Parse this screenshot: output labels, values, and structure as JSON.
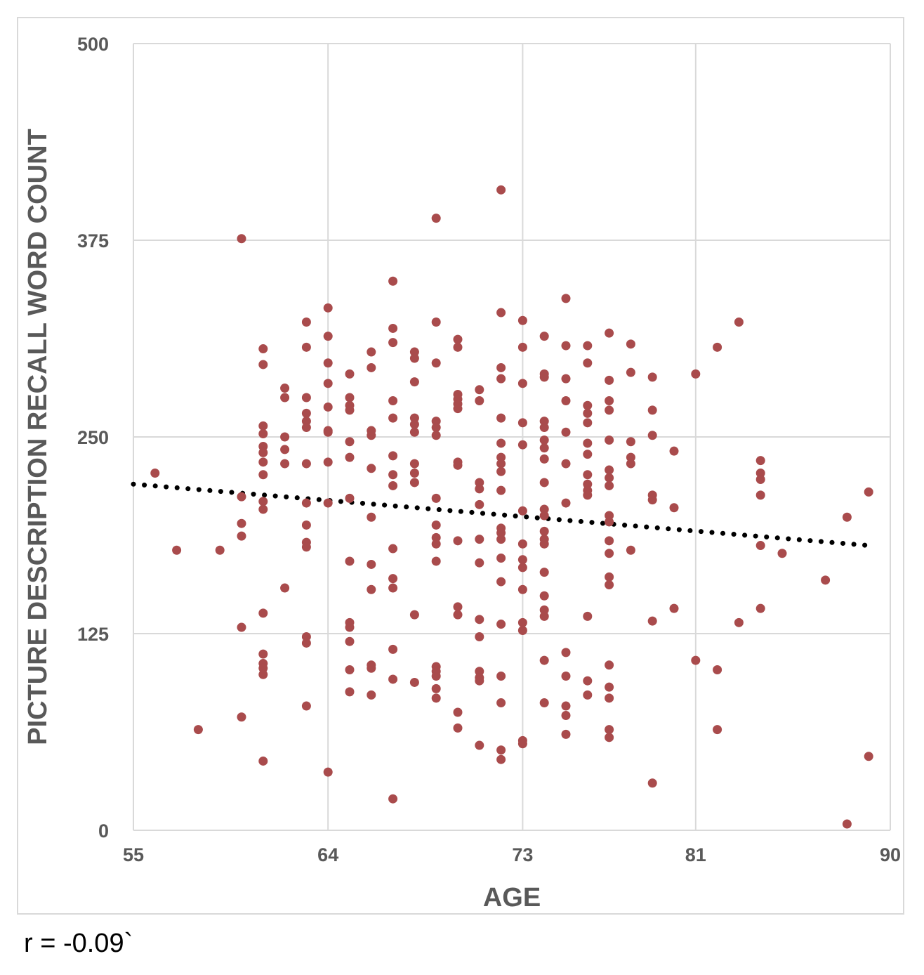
{
  "colors": {
    "marker": "#A94B4C",
    "trendline": "#000000",
    "grid": "#d9d9d9",
    "tick_text": "#595959"
  },
  "annotation": "r = -0.09`",
  "chart_data": {
    "type": "scatter",
    "title": "",
    "xlabel": "AGE",
    "ylabel": "PICTURE DESCRIPTION RECALL WORD COUNT",
    "xlim": [
      55,
      90
    ],
    "ylim": [
      0,
      500
    ],
    "xticks": [
      55,
      64,
      73,
      81,
      90
    ],
    "yticks": [
      0,
      125,
      250,
      375,
      500
    ],
    "grid": true,
    "legend": "none",
    "trendline": {
      "style": "dotted",
      "x": [
        55,
        89
      ],
      "y": [
        220,
        181
      ]
    },
    "points": [
      [
        56,
        227
      ],
      [
        57,
        178
      ],
      [
        58,
        64
      ],
      [
        59,
        178
      ],
      [
        60,
        376
      ],
      [
        60,
        212
      ],
      [
        60,
        195
      ],
      [
        60,
        187
      ],
      [
        60,
        129
      ],
      [
        60,
        72
      ],
      [
        61,
        306
      ],
      [
        61,
        296
      ],
      [
        61,
        257
      ],
      [
        61,
        252
      ],
      [
        61,
        244
      ],
      [
        61,
        240
      ],
      [
        61,
        234
      ],
      [
        61,
        226
      ],
      [
        61,
        209
      ],
      [
        61,
        204
      ],
      [
        61,
        138
      ],
      [
        61,
        112
      ],
      [
        61,
        106
      ],
      [
        61,
        103
      ],
      [
        61,
        99
      ],
      [
        61,
        44
      ],
      [
        62,
        281
      ],
      [
        62,
        275
      ],
      [
        62,
        250
      ],
      [
        62,
        242
      ],
      [
        62,
        233
      ],
      [
        62,
        154
      ],
      [
        63,
        323
      ],
      [
        63,
        307
      ],
      [
        63,
        275
      ],
      [
        63,
        265
      ],
      [
        63,
        260
      ],
      [
        63,
        256
      ],
      [
        63,
        233
      ],
      [
        63,
        208
      ],
      [
        63,
        194
      ],
      [
        63,
        183
      ],
      [
        63,
        180
      ],
      [
        63,
        123
      ],
      [
        63,
        119
      ],
      [
        63,
        79
      ],
      [
        64,
        332
      ],
      [
        64,
        314
      ],
      [
        64,
        297
      ],
      [
        64,
        284
      ],
      [
        64,
        269
      ],
      [
        64,
        254
      ],
      [
        64,
        253
      ],
      [
        64,
        234
      ],
      [
        64,
        208
      ],
      [
        64,
        37
      ],
      [
        65,
        290
      ],
      [
        65,
        275
      ],
      [
        65,
        270
      ],
      [
        65,
        267
      ],
      [
        65,
        247
      ],
      [
        65,
        237
      ],
      [
        65,
        211
      ],
      [
        65,
        171
      ],
      [
        65,
        132
      ],
      [
        65,
        129
      ],
      [
        65,
        120
      ],
      [
        65,
        102
      ],
      [
        65,
        88
      ],
      [
        66,
        304
      ],
      [
        66,
        294
      ],
      [
        66,
        254
      ],
      [
        66,
        251
      ],
      [
        66,
        230
      ],
      [
        66,
        199
      ],
      [
        66,
        169
      ],
      [
        66,
        153
      ],
      [
        66,
        105
      ],
      [
        66,
        103
      ],
      [
        66,
        86
      ],
      [
        67,
        349
      ],
      [
        67,
        319
      ],
      [
        67,
        310
      ],
      [
        67,
        273
      ],
      [
        67,
        262
      ],
      [
        67,
        238
      ],
      [
        67,
        226
      ],
      [
        67,
        219
      ],
      [
        67,
        179
      ],
      [
        67,
        160
      ],
      [
        67,
        154
      ],
      [
        67,
        115
      ],
      [
        67,
        96
      ],
      [
        67,
        20
      ],
      [
        68,
        304
      ],
      [
        68,
        300
      ],
      [
        68,
        285
      ],
      [
        68,
        262
      ],
      [
        68,
        258
      ],
      [
        68,
        253
      ],
      [
        68,
        233
      ],
      [
        68,
        227
      ],
      [
        68,
        221
      ],
      [
        68,
        137
      ],
      [
        68,
        94
      ],
      [
        69,
        389
      ],
      [
        69,
        323
      ],
      [
        69,
        297
      ],
      [
        69,
        260
      ],
      [
        69,
        256
      ],
      [
        69,
        251
      ],
      [
        69,
        211
      ],
      [
        69,
        194
      ],
      [
        69,
        186
      ],
      [
        69,
        182
      ],
      [
        69,
        171
      ],
      [
        69,
        104
      ],
      [
        69,
        101
      ],
      [
        69,
        98
      ],
      [
        69,
        90
      ],
      [
        69,
        84
      ],
      [
        70,
        312
      ],
      [
        70,
        307
      ],
      [
        70,
        277
      ],
      [
        70,
        274
      ],
      [
        70,
        271
      ],
      [
        70,
        268
      ],
      [
        70,
        234
      ],
      [
        70,
        232
      ],
      [
        70,
        184
      ],
      [
        70,
        142
      ],
      [
        70,
        137
      ],
      [
        70,
        75
      ],
      [
        70,
        65
      ],
      [
        71,
        280
      ],
      [
        71,
        273
      ],
      [
        71,
        221
      ],
      [
        71,
        217
      ],
      [
        71,
        207
      ],
      [
        71,
        185
      ],
      [
        71,
        170
      ],
      [
        71,
        134
      ],
      [
        71,
        123
      ],
      [
        71,
        101
      ],
      [
        71,
        97
      ],
      [
        71,
        95
      ],
      [
        71,
        54
      ],
      [
        72,
        407
      ],
      [
        72,
        329
      ],
      [
        72,
        294
      ],
      [
        72,
        287
      ],
      [
        72,
        262
      ],
      [
        72,
        246
      ],
      [
        72,
        237
      ],
      [
        72,
        233
      ],
      [
        72,
        228
      ],
      [
        72,
        216
      ],
      [
        72,
        192
      ],
      [
        72,
        189
      ],
      [
        72,
        185
      ],
      [
        72,
        173
      ],
      [
        72,
        158
      ],
      [
        72,
        131
      ],
      [
        72,
        98
      ],
      [
        72,
        81
      ],
      [
        72,
        51
      ],
      [
        72,
        45
      ],
      [
        73,
        324
      ],
      [
        73,
        307
      ],
      [
        73,
        284
      ],
      [
        73,
        259
      ],
      [
        73,
        245
      ],
      [
        73,
        203
      ],
      [
        73,
        182
      ],
      [
        73,
        172
      ],
      [
        73,
        167
      ],
      [
        73,
        153
      ],
      [
        73,
        132
      ],
      [
        73,
        127
      ],
      [
        73,
        57
      ],
      [
        73,
        55
      ],
      [
        74,
        314
      ],
      [
        74,
        290
      ],
      [
        74,
        288
      ],
      [
        74,
        260
      ],
      [
        74,
        256
      ],
      [
        74,
        248
      ],
      [
        74,
        243
      ],
      [
        74,
        236
      ],
      [
        74,
        221
      ],
      [
        74,
        204
      ],
      [
        74,
        200
      ],
      [
        74,
        190
      ],
      [
        74,
        185
      ],
      [
        74,
        182
      ],
      [
        74,
        164
      ],
      [
        74,
        149
      ],
      [
        74,
        140
      ],
      [
        74,
        136
      ],
      [
        74,
        108
      ],
      [
        74,
        81
      ],
      [
        75,
        338
      ],
      [
        75,
        308
      ],
      [
        75,
        287
      ],
      [
        75,
        273
      ],
      [
        75,
        253
      ],
      [
        75,
        233
      ],
      [
        75,
        208
      ],
      [
        75,
        113
      ],
      [
        75,
        98
      ],
      [
        75,
        79
      ],
      [
        75,
        73
      ],
      [
        75,
        61
      ],
      [
        76,
        308
      ],
      [
        76,
        297
      ],
      [
        76,
        270
      ],
      [
        76,
        265
      ],
      [
        76,
        259
      ],
      [
        76,
        246
      ],
      [
        76,
        239
      ],
      [
        76,
        226
      ],
      [
        76,
        220
      ],
      [
        76,
        216
      ],
      [
        76,
        213
      ],
      [
        76,
        136
      ],
      [
        76,
        95
      ],
      [
        76,
        86
      ],
      [
        77,
        316
      ],
      [
        77,
        286
      ],
      [
        77,
        273
      ],
      [
        77,
        267
      ],
      [
        77,
        248
      ],
      [
        77,
        229
      ],
      [
        77,
        224
      ],
      [
        77,
        219
      ],
      [
        77,
        200
      ],
      [
        77,
        196
      ],
      [
        77,
        184
      ],
      [
        77,
        176
      ],
      [
        77,
        161
      ],
      [
        77,
        156
      ],
      [
        77,
        105
      ],
      [
        77,
        91
      ],
      [
        77,
        84
      ],
      [
        77,
        64
      ],
      [
        77,
        59
      ],
      [
        78,
        309
      ],
      [
        78,
        291
      ],
      [
        78,
        247
      ],
      [
        78,
        237
      ],
      [
        78,
        233
      ],
      [
        78,
        178
      ],
      [
        79,
        288
      ],
      [
        79,
        267
      ],
      [
        79,
        251
      ],
      [
        79,
        213
      ],
      [
        79,
        210
      ],
      [
        79,
        133
      ],
      [
        79,
        30
      ],
      [
        80,
        241
      ],
      [
        80,
        205
      ],
      [
        80,
        141
      ],
      [
        81,
        290
      ],
      [
        81,
        108
      ],
      [
        82,
        307
      ],
      [
        82,
        102
      ],
      [
        82,
        64
      ],
      [
        83,
        323
      ],
      [
        83,
        132
      ],
      [
        84,
        235
      ],
      [
        84,
        227
      ],
      [
        84,
        223
      ],
      [
        84,
        213
      ],
      [
        84,
        181
      ],
      [
        84,
        141
      ],
      [
        85,
        176
      ],
      [
        87,
        159
      ],
      [
        88,
        199
      ],
      [
        88,
        4
      ],
      [
        89,
        215
      ],
      [
        89,
        47
      ]
    ]
  }
}
